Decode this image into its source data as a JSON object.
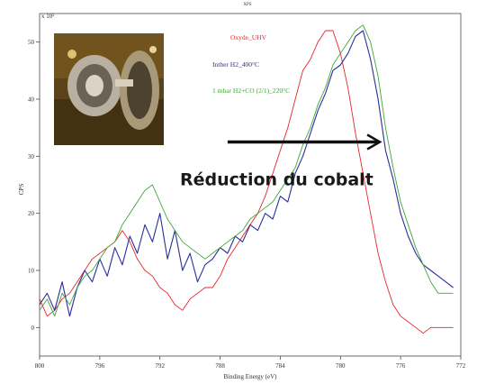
{
  "chart_data": {
    "type": "line",
    "title": "XPS",
    "xlabel": "Binding Energy (eV)",
    "ylabel": "CPS",
    "y_multiplier": "x 10²",
    "xlim": [
      800,
      772
    ],
    "ylim": [
      -5,
      55
    ],
    "x_reversed": true,
    "xticks": [
      800,
      796,
      792,
      788,
      784,
      780,
      776,
      772
    ],
    "yticks": [
      0,
      10,
      20,
      30,
      40,
      50
    ],
    "grid": false,
    "legend": "top-center",
    "annotation": {
      "text": "Réduction du cobalt",
      "arrow_from": [
        787.5,
        32.5
      ],
      "arrow_to": [
        777.5,
        32.5
      ]
    },
    "inset": {
      "name": "instrument-photo",
      "depicts": "photo of vacuum chamber sample holder"
    },
    "series": [
      {
        "name": "Oxyde_UHV",
        "color": "#e8262b",
        "x": [
          800,
          799.5,
          799,
          798.5,
          798,
          797.5,
          797,
          796.5,
          796,
          795.5,
          795,
          794.5,
          794,
          793.5,
          793,
          792.5,
          792,
          791.5,
          791,
          790.5,
          790,
          789.5,
          789,
          788.5,
          788,
          787.5,
          787,
          786.5,
          786,
          785.5,
          785,
          784.5,
          784,
          783.5,
          783,
          782.5,
          782,
          781.5,
          781,
          780.5,
          780,
          779.5,
          779,
          778.5,
          778,
          777.5,
          777,
          776.5,
          776,
          775.5,
          775,
          774.5,
          774,
          773.5,
          773,
          772.5
        ],
        "y": [
          5,
          2,
          3,
          5,
          6,
          8,
          10,
          12,
          13,
          14,
          15,
          17,
          15,
          12,
          10,
          9,
          7,
          6,
          4,
          3,
          5,
          6,
          7,
          7,
          9,
          12,
          14,
          16,
          18,
          20,
          23,
          27,
          31,
          35,
          40,
          45,
          47,
          50,
          52,
          52,
          48,
          42,
          34,
          27,
          20,
          13,
          8,
          4,
          2,
          1,
          0,
          -1,
          0,
          0,
          0,
          0
        ]
      },
      {
        "name": "Intber H2_400°C",
        "color": "#2b2e9e",
        "x": [
          800,
          799.5,
          799,
          798.5,
          798,
          797.5,
          797,
          796.5,
          796,
          795.5,
          795,
          794.5,
          794,
          793.5,
          793,
          792.5,
          792,
          791.5,
          791,
          790.5,
          790,
          789.5,
          789,
          788.5,
          788,
          787.5,
          787,
          786.5,
          786,
          785.5,
          785,
          784.5,
          784,
          783.5,
          783,
          782.5,
          782,
          781.5,
          781,
          780.5,
          780,
          779.5,
          779,
          778.5,
          778,
          777.5,
          777,
          776.5,
          776,
          775.5,
          775,
          774.5,
          774,
          773.5,
          773,
          772.5
        ],
        "y": [
          4,
          6,
          3,
          8,
          2,
          7,
          10,
          8,
          12,
          9,
          14,
          11,
          16,
          13,
          18,
          15,
          20,
          12,
          17,
          10,
          13,
          8,
          11,
          12,
          14,
          13,
          16,
          15,
          18,
          17,
          20,
          19,
          23,
          22,
          27,
          30,
          34,
          38,
          41,
          45,
          46,
          48,
          51,
          52,
          47,
          40,
          31,
          26,
          20,
          16,
          13,
          11,
          10,
          9,
          8,
          7
        ]
      },
      {
        "name": "1 mbar H2+CO (2/1)_220°C",
        "color": "#3ea63b",
        "x": [
          800,
          799.5,
          799,
          798.5,
          798,
          797.5,
          797,
          796.5,
          796,
          795.5,
          795,
          794.5,
          794,
          793.5,
          793,
          792.5,
          792,
          791.5,
          791,
          790.5,
          790,
          789.5,
          789,
          788.5,
          788,
          787.5,
          787,
          786.5,
          786,
          785.5,
          785,
          784.5,
          784,
          783.5,
          783,
          782.5,
          782,
          781.5,
          781,
          780.5,
          780,
          779.5,
          779,
          778.5,
          778,
          777.5,
          777,
          776.5,
          776,
          775.5,
          775,
          774.5,
          774,
          773.5,
          773,
          772.5
        ],
        "y": [
          3,
          5,
          2,
          6,
          4,
          7,
          9,
          10,
          12,
          14,
          15,
          18,
          20,
          22,
          24,
          25,
          22,
          19,
          17,
          15,
          14,
          13,
          12,
          13,
          14,
          15,
          16,
          17,
          19,
          20,
          21,
          22,
          24,
          26,
          28,
          32,
          35,
          39,
          42,
          46,
          48,
          50,
          52,
          53,
          50,
          44,
          35,
          28,
          22,
          18,
          14,
          11,
          8,
          6,
          6,
          6
        ]
      }
    ]
  }
}
